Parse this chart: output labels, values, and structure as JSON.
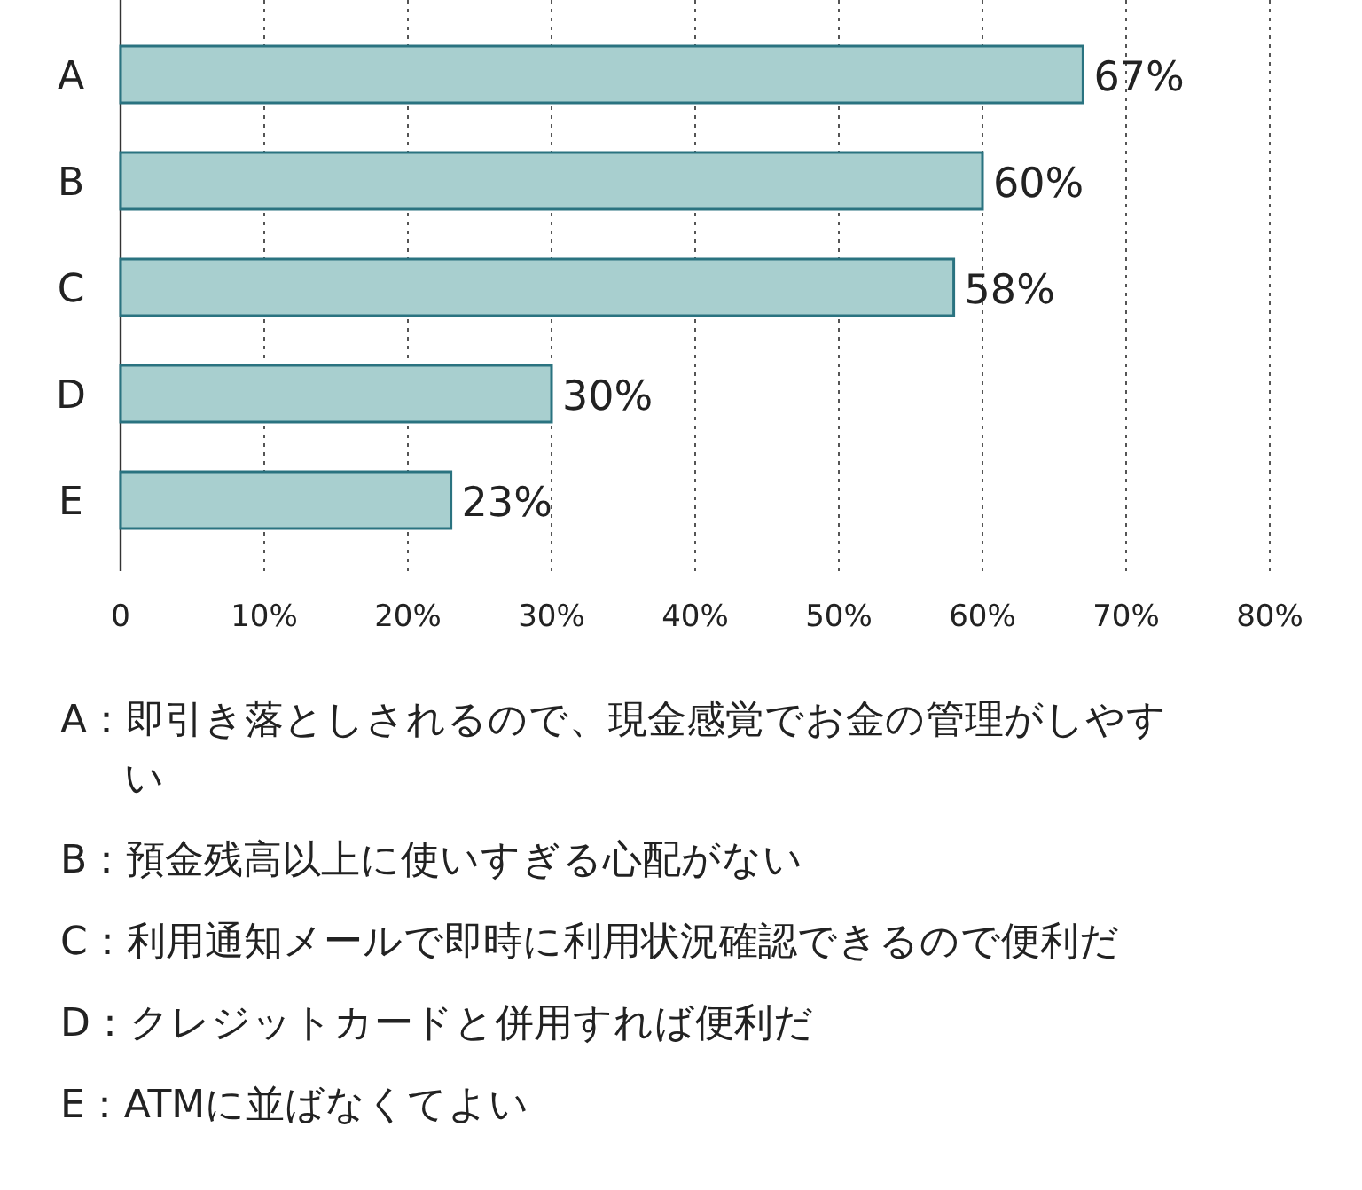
{
  "chart_data": {
    "type": "bar",
    "orientation": "horizontal",
    "categories": [
      "A",
      "B",
      "C",
      "D",
      "E"
    ],
    "values": [
      67,
      60,
      58,
      30,
      23
    ],
    "value_labels": [
      "67%",
      "60%",
      "58%",
      "30%",
      "23%"
    ],
    "color": "#a8cfcf",
    "xlim": [
      0,
      80
    ],
    "xticks": [
      0,
      {
        "value": 10,
        "label": "10%"
      },
      {
        "value": 20,
        "label": "20%"
      },
      {
        "value": 30,
        "label": "30%"
      },
      {
        "value": 40,
        "label": "40%"
      },
      {
        "value": 50,
        "label": "50%"
      },
      {
        "value": 60,
        "label": "60%"
      },
      {
        "value": 70,
        "label": "70%"
      },
      {
        "value": 80,
        "label": "80%"
      }
    ],
    "grid": "x",
    "annotations": [
      "A：即引き落としされるので、現金感覚でお金の管理がしやすい",
      "B：預金残高以上に使いすぎる心配がない",
      "C：利用通知メールで即時に利用状況確認できるので便利だ",
      "D：クレジットカードと併用すれば便利だ",
      "E：ATMに並ばなくてよい"
    ]
  }
}
